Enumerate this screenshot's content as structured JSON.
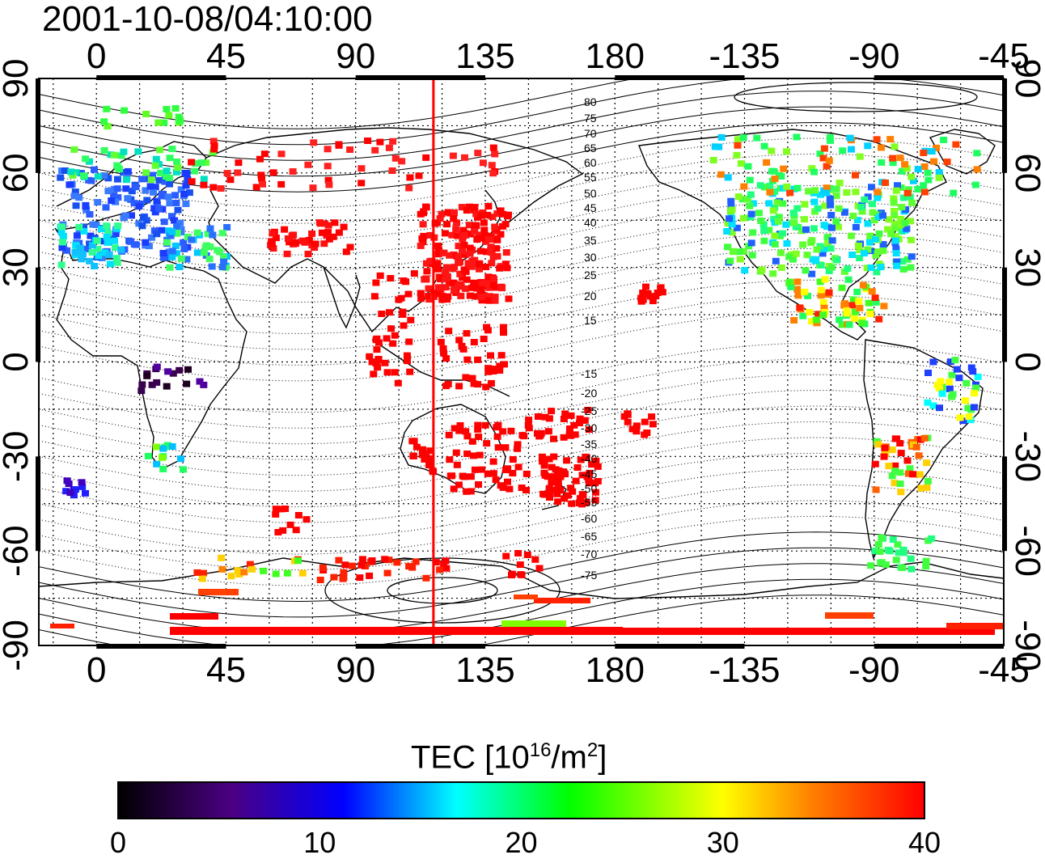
{
  "title": "2001-10-08/04:10:00",
  "map": {
    "x_ticks_top": [
      "0",
      "45",
      "90",
      "135",
      "180",
      "-135",
      "-90",
      "-45"
    ],
    "x_ticks_bottom": [
      "0",
      "45",
      "90",
      "135",
      "180",
      "-135",
      "-90",
      "-45"
    ],
    "y_ticks_left": [
      "90",
      "60",
      "30",
      "0",
      "-30",
      "-60",
      "-90"
    ],
    "y_ticks_right": [
      "90",
      "60",
      "30",
      "0",
      "-30",
      "-60",
      "-90"
    ],
    "lon_range": [
      -20,
      315
    ],
    "lat_range": [
      -90,
      90
    ],
    "grid": true,
    "terminator_longitude": 117,
    "contour_labels_north": [
      "80",
      "75",
      "70",
      "65",
      "60",
      "55",
      "50",
      "45",
      "40",
      "35",
      "30",
      "25",
      "20",
      "15"
    ],
    "contour_labels_south": [
      "-15",
      "-20",
      "-25",
      "-30",
      "-35",
      "-40",
      "-45",
      "-50",
      "-55",
      "-60",
      "-65",
      "-70",
      "-75"
    ],
    "colors": {
      "terminator": "#ff0000",
      "colormap": [
        "#000000",
        "#4b0082",
        "#0000ff",
        "#00ffff",
        "#00ff00",
        "#ffff00",
        "#ff8000",
        "#ff0000"
      ]
    }
  },
  "colorbar": {
    "title_main": "TEC  [10",
    "title_exp1": "16",
    "title_mid": "/m",
    "title_exp2": "2",
    "title_end": "]",
    "min": 0,
    "max": 40,
    "ticks": [
      "0",
      "10",
      "20",
      "30",
      "40"
    ]
  }
}
